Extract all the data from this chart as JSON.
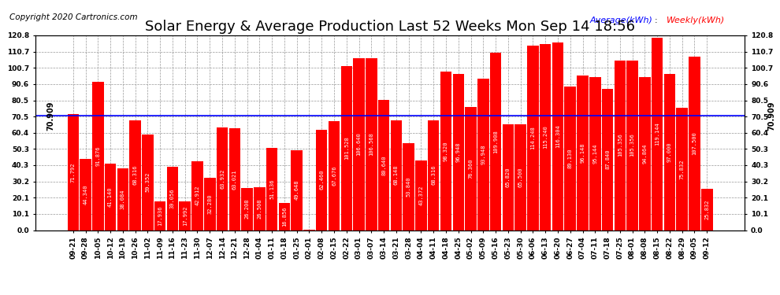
{
  "title": "Solar Energy & Average Production Last 52 Weeks Mon Sep 14 18:56",
  "copyright": "Copyright 2020 Cartronics.com",
  "average_value": 70.909,
  "bar_color": "#ff0000",
  "average_line_color": "#0000ff",
  "legend_average_color": "#0000ff",
  "legend_weekly_color": "#ff0000",
  "background_color": "#ffffff",
  "grid_color": "#999999",
  "ylim": [
    0.0,
    120.8
  ],
  "yticks": [
    0.0,
    10.1,
    20.1,
    30.2,
    40.3,
    50.3,
    60.4,
    70.5,
    80.5,
    90.6,
    100.7,
    110.7,
    120.8
  ],
  "categories": [
    "09-21",
    "09-28",
    "10-05",
    "10-12",
    "10-19",
    "10-26",
    "11-02",
    "11-09",
    "11-16",
    "11-23",
    "11-30",
    "12-07",
    "12-14",
    "12-21",
    "12-28",
    "01-04",
    "01-11",
    "01-18",
    "01-25",
    "02-01",
    "02-08",
    "02-15",
    "02-22",
    "03-01",
    "03-07",
    "03-14",
    "03-21",
    "03-28",
    "04-04",
    "04-11",
    "04-18",
    "04-25",
    "05-02",
    "05-09",
    "05-16",
    "05-23",
    "05-30",
    "06-06",
    "06-13",
    "06-20",
    "06-27",
    "07-04",
    "07-11",
    "07-18",
    "07-25",
    "08-01",
    "08-08",
    "08-15",
    "08-22",
    "08-29",
    "09-05",
    "09-12"
  ],
  "values": [
    71.792,
    44.34,
    91.876,
    41.14,
    38.084,
    68.316,
    59.352,
    17.936,
    39.056,
    17.992,
    42.912,
    32.28,
    63.932,
    63.021,
    26.208,
    26.508,
    51.136,
    16.856,
    49.648,
    0.096,
    62.46,
    67.676,
    101.528,
    106.64,
    106.568,
    80.64,
    68.148,
    53.84,
    43.372,
    68.316,
    98.32,
    96.948,
    76.36,
    93.948,
    109.908,
    65.82,
    65.5,
    114.248,
    115.24,
    116.304,
    89.13,
    96.148,
    95.144,
    87.84,
    105.356,
    105.356,
    94.864,
    119.144,
    97.0,
    75.832,
    107.5,
    25.832
  ],
  "title_fontsize": 13,
  "tick_fontsize": 6.5,
  "bar_label_fontsize": 5.0,
  "copyright_fontsize": 7.5,
  "legend_fontsize": 8
}
